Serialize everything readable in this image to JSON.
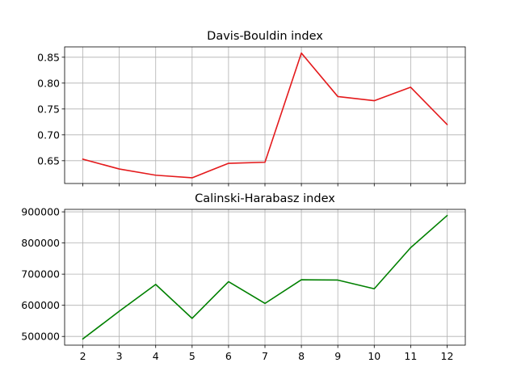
{
  "chart_data": [
    {
      "type": "line",
      "title": "Davis-Bouldin index",
      "xlabel": "",
      "ylabel": "",
      "x": [
        2,
        3,
        4,
        5,
        6,
        7,
        8,
        9,
        10,
        11,
        12
      ],
      "series": [
        {
          "values": [
            0.653,
            0.634,
            0.622,
            0.617,
            0.645,
            0.647,
            0.858,
            0.774,
            0.766,
            0.792,
            0.72
          ]
        }
      ],
      "color": "#e41a1c",
      "xlim": [
        1.5,
        12.5
      ],
      "ylim": [
        0.606,
        0.87
      ],
      "yticks": [
        0.65,
        0.7,
        0.75,
        0.8,
        0.85
      ],
      "ytick_labels": [
        "0.65",
        "0.70",
        "0.75",
        "0.80",
        "0.85"
      ],
      "xticks": [
        2,
        3,
        4,
        5,
        6,
        7,
        8,
        9,
        10,
        11,
        12
      ],
      "xtick_labels": [],
      "grid": true
    },
    {
      "type": "line",
      "title": "Calinski-Harabasz index",
      "xlabel": "",
      "ylabel": "",
      "x": [
        2,
        3,
        4,
        5,
        6,
        7,
        8,
        9,
        10,
        11,
        12
      ],
      "series": [
        {
          "values": [
            492000,
            581000,
            667000,
            558000,
            676000,
            606000,
            682000,
            681000,
            653000,
            785000,
            888000
          ]
        }
      ],
      "color": "#008000",
      "xlim": [
        1.5,
        12.5
      ],
      "ylim": [
        472000,
        908000
      ],
      "yticks": [
        500000,
        600000,
        700000,
        800000,
        900000
      ],
      "ytick_labels": [
        "500000",
        "600000",
        "700000",
        "800000",
        "900000"
      ],
      "xticks": [
        2,
        3,
        4,
        5,
        6,
        7,
        8,
        9,
        10,
        11,
        12
      ],
      "xtick_labels": [
        "2",
        "3",
        "4",
        "5",
        "6",
        "7",
        "8",
        "9",
        "10",
        "11",
        "12"
      ],
      "grid": true
    }
  ]
}
